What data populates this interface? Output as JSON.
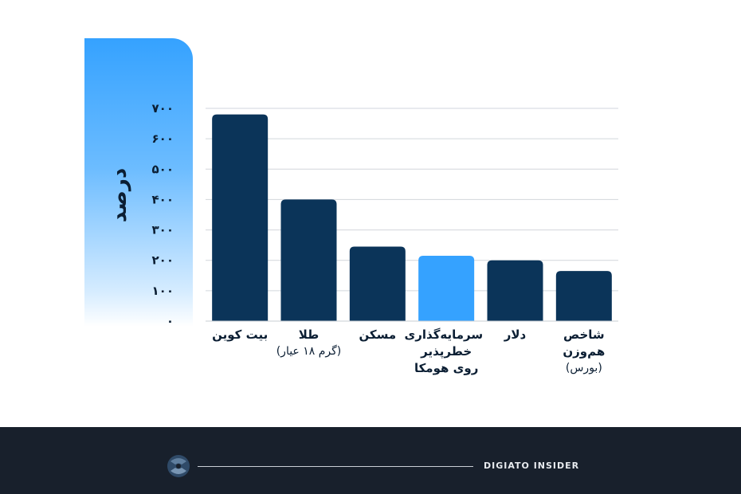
{
  "chart_data": {
    "type": "bar",
    "ylabel": "درصد",
    "ylim": [
      0,
      700
    ],
    "yticks": [
      "۰",
      "۱۰۰",
      "۲۰۰",
      "۳۰۰",
      "۴۰۰",
      "۵۰۰",
      "۶۰۰",
      "۷۰۰"
    ],
    "grid": true,
    "categories": [
      {
        "label": "بیت کوین",
        "sub": ""
      },
      {
        "label": "طلا",
        "sub": "(گرم ۱۸ عیار)"
      },
      {
        "label": "مسکن",
        "sub": ""
      },
      {
        "label": "سرمایه‌گذاری خطرپذیر روی هومکا",
        "sub": ""
      },
      {
        "label": "دلار",
        "sub": ""
      },
      {
        "label": "شاخص هم‌وزن",
        "sub": "(بورس)"
      }
    ],
    "values": [
      680,
      400,
      245,
      215,
      200,
      165
    ],
    "colors": [
      "#0b3459",
      "#0b3459",
      "#0b3459",
      "#35a2ff",
      "#0b3459",
      "#0b3459"
    ]
  },
  "footer": {
    "brand": "DIGIATO INSIDER",
    "logo_icon": "digiato-logo-icon"
  }
}
